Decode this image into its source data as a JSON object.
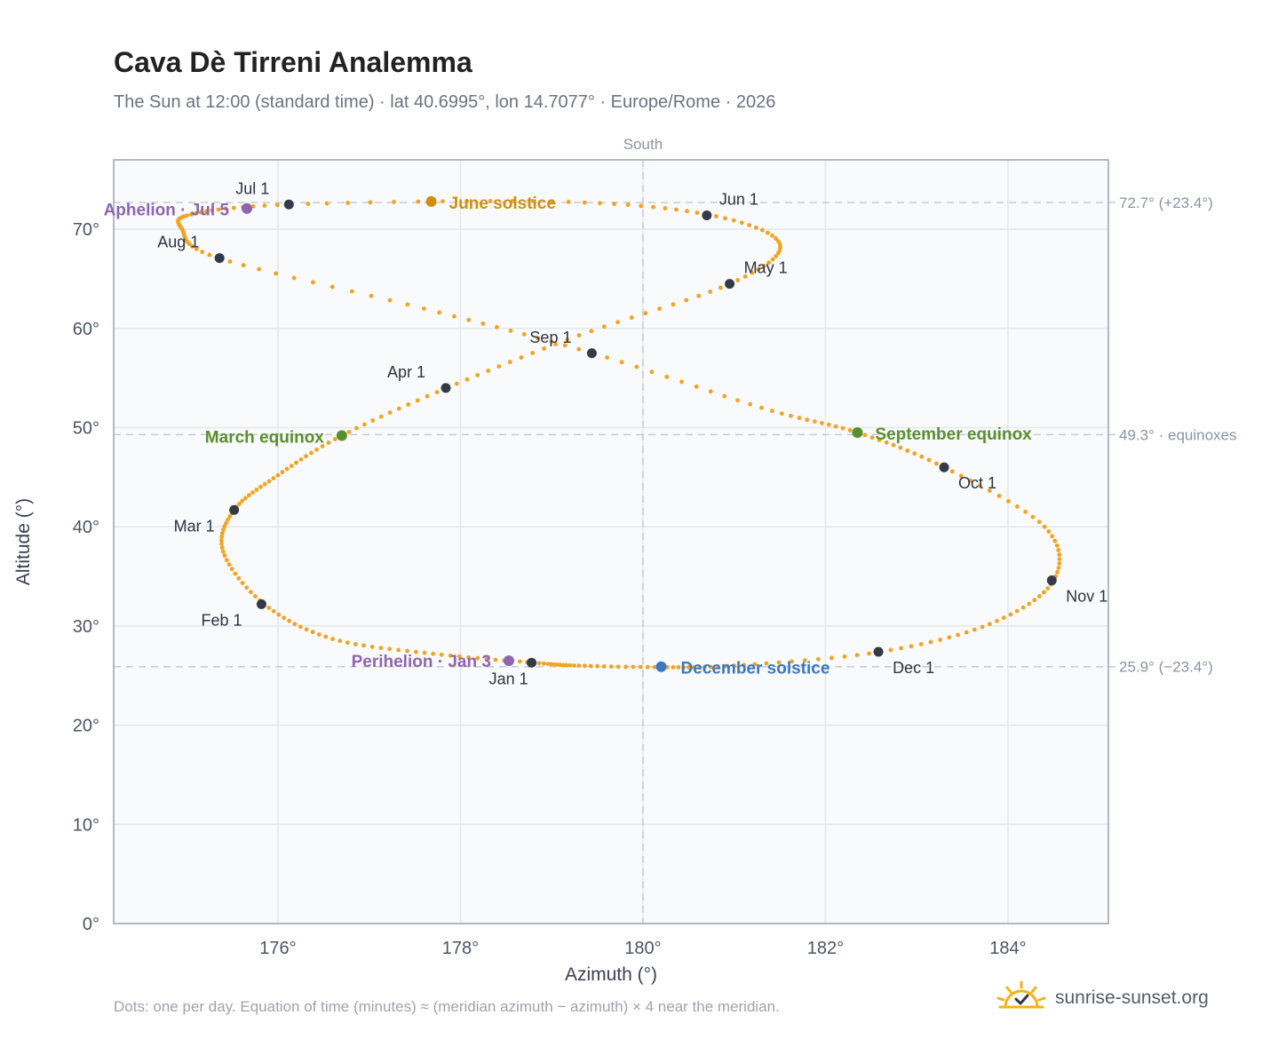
{
  "header": {
    "title": "Cava Dè Tirreni Analemma",
    "subtitle": "The Sun at 12:00 (standard time) · lat 40.6995°, lon 14.7077° · Europe/Rome · 2026"
  },
  "footer": {
    "note": "Dots: one per day. Equation of time (minutes) ≈ (meridian azimuth − azimuth) × 4 near the meridian.",
    "brand": "sunrise-sunset.org"
  },
  "colors": {
    "path": "#f2a321",
    "month_marker": "#343a46",
    "equinox": "#5a8f2e",
    "june_solstice": "#d08f0c",
    "december_solstice": "#3b78c2",
    "apsis": "#8e65b0",
    "plot_bg": "#f8fafc",
    "grid": "#e5e7eb",
    "reference_line": "#c4ccd6"
  },
  "chart_data": {
    "type": "scatter",
    "title": "Cava Dè Tirreni Analemma",
    "xlabel": "Azimuth (°)",
    "ylabel": "Altitude (°)",
    "xlim": [
      174.2,
      185.1
    ],
    "ylim": [
      0,
      77
    ],
    "x_ticks": [
      {
        "value": 176,
        "label": "176°"
      },
      {
        "value": 178,
        "label": "178°"
      },
      {
        "value": 180,
        "label": "180°"
      },
      {
        "value": 182,
        "label": "182°"
      },
      {
        "value": 184,
        "label": "184°"
      }
    ],
    "y_ticks": [
      {
        "value": 0,
        "label": "0°"
      },
      {
        "value": 10,
        "label": "10°"
      },
      {
        "value": 20,
        "label": "20°"
      },
      {
        "value": 30,
        "label": "30°"
      },
      {
        "value": 40,
        "label": "40°"
      },
      {
        "value": 50,
        "label": "50°"
      },
      {
        "value": 60,
        "label": "60°"
      },
      {
        "value": 70,
        "label": "70°"
      }
    ],
    "grid": true,
    "meridian": {
      "x": 180,
      "label": "South"
    },
    "reference_lines": [
      {
        "y": 72.7,
        "label": "72.7° (+23.4°)"
      },
      {
        "y": 49.3,
        "label": "49.3° · equinoxes"
      },
      {
        "y": 25.9,
        "label": "25.9° (−23.4°)"
      }
    ],
    "series": [
      {
        "kind": "daily_path",
        "points": [
          [
            178.8,
            26.3
          ],
          [
            177.7,
            27.2
          ],
          [
            176.6,
            28.7
          ],
          [
            175.85,
            32.2
          ],
          [
            175.4,
            37.5
          ],
          [
            175.52,
            41.7
          ],
          [
            176.0,
            45.2
          ],
          [
            176.7,
            49.2
          ],
          [
            177.85,
            54.0
          ],
          [
            179.3,
            59.3
          ],
          [
            180.95,
            64.5
          ],
          [
            181.5,
            68.5
          ],
          [
            180.7,
            71.5
          ],
          [
            179.0,
            72.8
          ],
          [
            176.15,
            72.5
          ],
          [
            175.05,
            71.5
          ],
          [
            174.95,
            70.0
          ],
          [
            175.35,
            67.1
          ],
          [
            177.6,
            62.0
          ],
          [
            179.45,
            57.5
          ],
          [
            181.3,
            52.0
          ],
          [
            182.35,
            49.5
          ],
          [
            183.3,
            46.0
          ],
          [
            184.4,
            40.0
          ],
          [
            184.5,
            34.6
          ],
          [
            183.8,
            30.2
          ],
          [
            182.6,
            27.4
          ],
          [
            181.0,
            26.0
          ],
          [
            180.2,
            25.85
          ],
          [
            179.3,
            26.0
          ],
          [
            178.8,
            26.3
          ]
        ]
      },
      {
        "kind": "month_markers",
        "points": [
          {
            "label": "Jan 1",
            "x": 178.78,
            "y": 26.3
          },
          {
            "label": "Feb 1",
            "x": 175.82,
            "y": 32.2
          },
          {
            "label": "Mar 1",
            "x": 175.52,
            "y": 41.7
          },
          {
            "label": "Apr 1",
            "x": 177.84,
            "y": 54.0
          },
          {
            "label": "May 1",
            "x": 180.95,
            "y": 64.5
          },
          {
            "label": "Jun 1",
            "x": 180.7,
            "y": 71.4
          },
          {
            "label": "Jul 1",
            "x": 176.12,
            "y": 72.5
          },
          {
            "label": "Aug 1",
            "x": 175.36,
            "y": 67.1
          },
          {
            "label": "Sep 1",
            "x": 179.44,
            "y": 57.5
          },
          {
            "label": "Oct 1",
            "x": 183.3,
            "y": 46.0
          },
          {
            "label": "Nov 1",
            "x": 184.48,
            "y": 34.6
          },
          {
            "label": "Dec 1",
            "x": 182.58,
            "y": 27.4
          }
        ]
      },
      {
        "kind": "events",
        "points": [
          {
            "label": "March equinox",
            "x": 176.7,
            "y": 49.2,
            "color": "#5a8f2e"
          },
          {
            "label": "June solstice",
            "x": 177.68,
            "y": 72.8,
            "color": "#d08f0c"
          },
          {
            "label": "September equinox",
            "x": 182.35,
            "y": 49.5,
            "color": "#5a8f2e"
          },
          {
            "label": "December solstice",
            "x": 180.2,
            "y": 25.9,
            "color": "#3b78c2"
          },
          {
            "label": "Perihelion · Jan 3",
            "x": 178.53,
            "y": 26.5,
            "color": "#8e65b0"
          },
          {
            "label": "Aphelion · Jul 5",
            "x": 175.66,
            "y": 72.1,
            "color": "#8e65b0"
          }
        ]
      }
    ]
  }
}
